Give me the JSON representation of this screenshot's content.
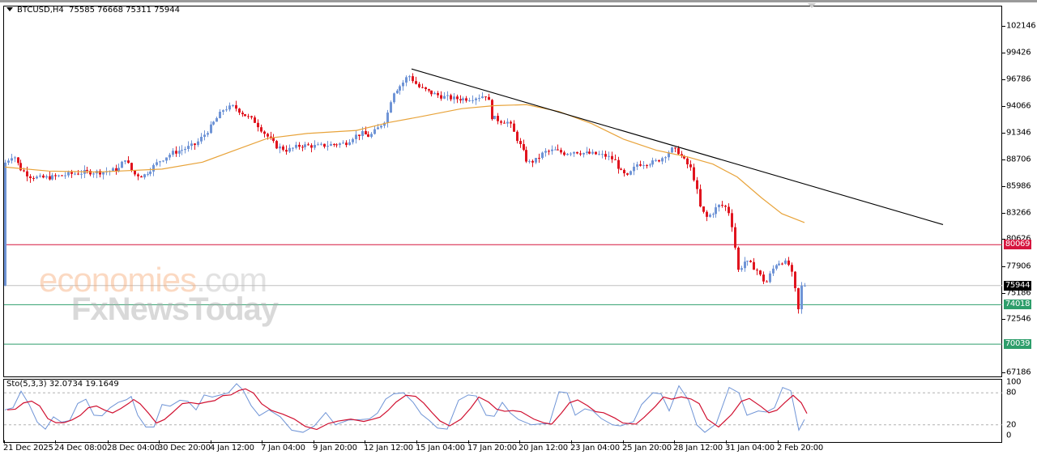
{
  "header": {
    "symbol_label": "BTCUSD,H4",
    "ohlc_label": "75585 76668 75311 75944"
  },
  "indicator": {
    "label": "Sto(5,3,3) 32.0734 19.1649"
  },
  "watermark": {
    "part1": "economies",
    "part2": ".com",
    "part3": "FxNewsToday"
  },
  "colors": {
    "bull": "#6f94d6",
    "bear": "#e0141e",
    "ma": "#e8a33a",
    "trendline": "#000000",
    "resistance": "#d6163f",
    "support": "#2e9e6b",
    "current_price_line": "#c0c0c0",
    "sto_main": "#6f94d6",
    "sto_signal": "#d01030"
  },
  "price_axis": {
    "labels": [
      "102146",
      "99426",
      "96786",
      "94066",
      "91346",
      "88706",
      "85986",
      "83266",
      "80626",
      "77906",
      "75186",
      "72546",
      "67186"
    ],
    "tags": [
      {
        "value": "80069",
        "bg": "#d6163f"
      },
      {
        "value": "75944",
        "bg": "#000000"
      },
      {
        "value": "74018",
        "bg": "#2e9e6b"
      },
      {
        "value": "70039",
        "bg": "#2e9e6b"
      }
    ]
  },
  "sto_axis": {
    "labels": [
      "100",
      "80",
      "20",
      "0"
    ]
  },
  "time_axis": {
    "labels": [
      "21 Dec 2025",
      "24 Dec 08:00",
      "28 Dec 04:00",
      "30 Dec 20:00",
      "4 Jan 12:00",
      "7 Jan 04:00",
      "9 Jan 20:00",
      "12 Jan 12:00",
      "15 Jan 04:00",
      "17 Jan 20:00",
      "20 Jan 12:00",
      "23 Jan 04:00",
      "25 Jan 20:00",
      "28 Jan 12:00",
      "31 Jan 04:00",
      "2 Feb 20:00"
    ]
  },
  "chart_data": [
    {
      "type": "candlestick",
      "title": "BTCUSD,H4",
      "symbol": "BTCUSD",
      "timeframe": "H4",
      "last_bar": {
        "open": 75585,
        "high": 76668,
        "low": 75311,
        "close": 75944
      },
      "x_range": [
        "21 Dec 2025",
        "3 Feb 2026"
      ],
      "ylim": [
        66500,
        103200
      ],
      "y_ticks": [
        102146,
        99426,
        96786,
        94066,
        91346,
        88706,
        85986,
        83266,
        80626,
        77906,
        75186,
        72546,
        67186
      ],
      "horizontal_levels": [
        {
          "name": "resistance",
          "value": 80069
        },
        {
          "name": "current_price",
          "value": 75944
        },
        {
          "name": "support_1",
          "value": 74018
        },
        {
          "name": "support_2",
          "value": 70039
        }
      ],
      "trendline": {
        "from": {
          "date": "13 Jan 2026",
          "price": 97800
        },
        "to": {
          "date": "4 Feb 2026",
          "price": 82100
        }
      },
      "moving_average_path_approx": [
        {
          "x": "21 Dec 2025",
          "y": 87800
        },
        {
          "x": "28 Dec 2025",
          "y": 87500
        },
        {
          "x": "4 Jan 2026",
          "y": 89200
        },
        {
          "x": "7 Jan 2026",
          "y": 90900
        },
        {
          "x": "12 Jan 2026",
          "y": 91600
        },
        {
          "x": "17 Jan 2026",
          "y": 93900
        },
        {
          "x": "20 Jan 2026",
          "y": 94200
        },
        {
          "x": "25 Jan 2026",
          "y": 90600
        },
        {
          "x": "28 Jan 2026",
          "y": 89000
        },
        {
          "x": "31 Jan 2026",
          "y": 85500
        },
        {
          "x": "2 Feb 2026",
          "y": 82400
        }
      ],
      "price_path_approx": [
        {
          "x": "21 Dec 2025",
          "close": 88200
        },
        {
          "x": "24 Dec 2025",
          "close": 87300
        },
        {
          "x": "28 Dec 2025",
          "close": 87500
        },
        {
          "x": "30 Dec 2025",
          "close": 88600
        },
        {
          "x": "4 Jan 2026",
          "close": 93500
        },
        {
          "x": "7 Jan 2026",
          "close": 90200
        },
        {
          "x": "9 Jan 2026",
          "close": 90400
        },
        {
          "x": "12 Jan 2026",
          "close": 91500
        },
        {
          "x": "14 Jan 2026",
          "close": 97000
        },
        {
          "x": "17 Jan 2026",
          "close": 95300
        },
        {
          "x": "19 Jan 2026",
          "close": 92800
        },
        {
          "x": "20 Jan 2026",
          "close": 88500
        },
        {
          "x": "23 Jan 2026",
          "close": 89500
        },
        {
          "x": "25 Jan 2026",
          "close": 87800
        },
        {
          "x": "28 Jan 2026",
          "close": 89600
        },
        {
          "x": "29 Jan 2026",
          "close": 84000
        },
        {
          "x": "30 Jan 2026",
          "close": 83500
        },
        {
          "x": "31 Jan 2026",
          "close": 78200
        },
        {
          "x": "1 Feb 2026",
          "close": 77000
        },
        {
          "x": "2 Feb 2026",
          "close": 78400
        },
        {
          "x": "3 Feb 2026",
          "close": 73500
        },
        {
          "x": "3 Feb 2026 last",
          "close": 75944
        }
      ]
    },
    {
      "type": "line",
      "title": "Sto(5,3,3)",
      "series": [
        {
          "name": "%K",
          "last_value": 32.0734
        },
        {
          "name": "%D",
          "last_value": 19.1649
        }
      ],
      "ylim": [
        0,
        100
      ],
      "levels": [
        20,
        80
      ],
      "y_ticks": [
        100,
        80,
        20,
        0
      ]
    }
  ]
}
